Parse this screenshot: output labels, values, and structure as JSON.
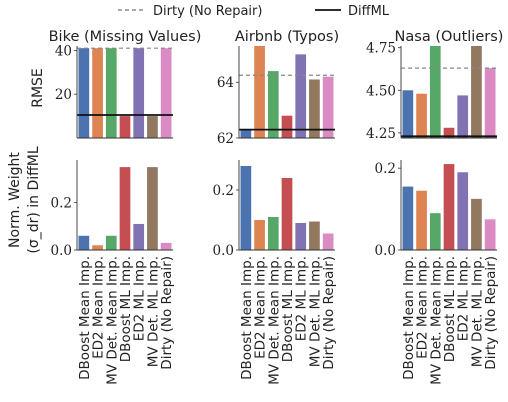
{
  "legend": {
    "dirty_label": "Dirty (No Repair)",
    "diffml_label": "DiffML"
  },
  "y_labels": {
    "top": "RMSE",
    "bottom_line1": "Norm. Weight",
    "bottom_line2": "(σ_dr) in DiffML"
  },
  "categories": [
    "DBoost Mean Imp.",
    "ED2 Mean Imp.",
    "MV Det. Mean Imp.",
    "DBoost ML Imp.",
    "ED2 ML Imp.",
    "MV Det. ML Imp.",
    "Dirty (No Repair)"
  ],
  "colors": [
    "#4c72b0",
    "#dd8452",
    "#55a868",
    "#c44e52",
    "#8172b3",
    "#937860",
    "#da8bc3"
  ],
  "chart_data": [
    {
      "type": "bar",
      "title": "Bike (Missing Values)",
      "ylabel": "RMSE",
      "ylim": [
        0,
        42
      ],
      "yticks": [
        20,
        40
      ],
      "values": [
        41,
        41,
        41,
        10,
        41,
        10,
        41
      ],
      "reference_lines": {
        "dirty": 41,
        "diffml": 10.5
      }
    },
    {
      "type": "bar",
      "title": "Airbnb (Typos)",
      "ylim": [
        62,
        65.3
      ],
      "yticks": [
        62,
        64
      ],
      "values": [
        62.3,
        65.3,
        64.4,
        62.8,
        65.0,
        64.1,
        64.2
      ],
      "reference_lines": {
        "dirty": 64.25,
        "diffml": 62.3
      }
    },
    {
      "type": "bar",
      "title": "Nasa (Outliers)",
      "ylim": [
        4.22,
        4.76
      ],
      "yticks": [
        4.25,
        4.5,
        4.75
      ],
      "values": [
        4.5,
        4.48,
        4.76,
        4.28,
        4.47,
        4.76,
        4.63
      ],
      "reference_lines": {
        "dirty": 4.63,
        "diffml": 4.23
      }
    },
    {
      "type": "bar",
      "ylabel": "Norm. Weight (σ_dr) in DiffML",
      "ylim": [
        0,
        0.38
      ],
      "yticks": [
        0.0,
        0.2
      ],
      "values": [
        0.06,
        0.02,
        0.06,
        0.35,
        0.11,
        0.35,
        0.03
      ]
    },
    {
      "type": "bar",
      "ylim": [
        0,
        0.3
      ],
      "yticks": [
        0.0,
        0.2
      ],
      "values": [
        0.28,
        0.1,
        0.11,
        0.24,
        0.09,
        0.095,
        0.055
      ]
    },
    {
      "type": "bar",
      "ylim": [
        0,
        0.22
      ],
      "yticks": [
        0.0,
        0.2
      ],
      "values": [
        0.155,
        0.145,
        0.09,
        0.21,
        0.19,
        0.125,
        0.075
      ]
    }
  ]
}
